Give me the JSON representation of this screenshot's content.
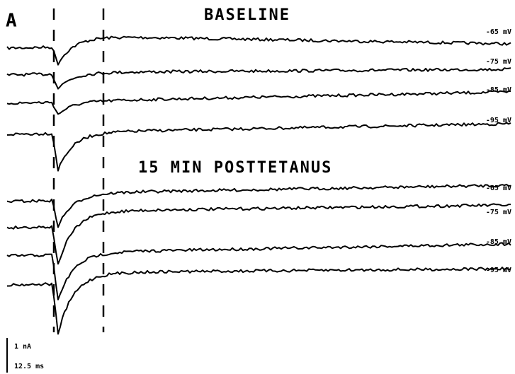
{
  "panel_label": "A",
  "sections": [
    {
      "title": "BASELINE",
      "traces": [
        "-65 mV",
        "-75 mV",
        "-85 mV",
        "-95 mV"
      ]
    },
    {
      "title": "15 MIN POSTTETANUS",
      "traces": [
        "-65 mV",
        "-75 mV",
        "-85 mV",
        "-95 mV"
      ]
    }
  ],
  "scale_bar": {
    "current": "1 nA",
    "time": "12.5 ms"
  }
}
